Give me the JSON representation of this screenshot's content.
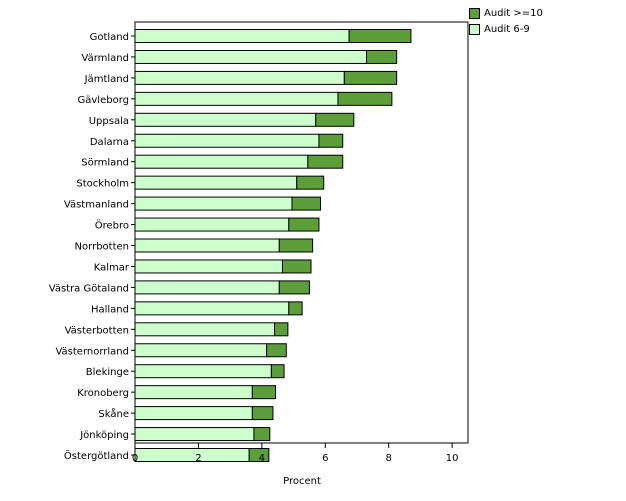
{
  "chart_data": {
    "type": "bar",
    "orientation": "horizontal",
    "stacked": true,
    "categories": [
      "Gotland",
      "Värmland",
      "Jämtland",
      "Gävleborg",
      "Uppsala",
      "Dalarna",
      "Sörmland",
      "Stockholm",
      "Västmanland",
      "Örebro",
      "Norrbotten",
      "Kalmar",
      "Västra Götaland",
      "Halland",
      "Västerbotten",
      "Västernorrland",
      "Blekinge",
      "Kronoberg",
      "Skåne",
      "Jönköping",
      "Östergötland"
    ],
    "series": [
      {
        "name": "Audit 6-9",
        "color": "#ccffcc",
        "values": [
          6.75,
          7.3,
          6.6,
          6.4,
          5.7,
          5.8,
          5.45,
          5.1,
          4.95,
          4.85,
          4.55,
          4.65,
          4.55,
          4.85,
          4.4,
          4.15,
          4.3,
          3.7,
          3.7,
          3.75,
          3.6
        ]
      },
      {
        "name": "Audit >=10",
        "color": "#5b9e3a",
        "values": [
          1.95,
          0.95,
          1.65,
          1.7,
          1.2,
          0.75,
          1.1,
          0.85,
          0.9,
          0.95,
          1.05,
          0.9,
          0.95,
          0.42,
          0.42,
          0.62,
          0.4,
          0.73,
          0.65,
          0.5,
          0.62
        ]
      }
    ],
    "legend_order": [
      "Audit >=10",
      "Audit 6-9"
    ],
    "xlabel": "Procent",
    "ylabel": "",
    "xlim": [
      0,
      10.5
    ],
    "xticks": [
      0,
      2,
      4,
      6,
      8,
      10
    ],
    "grid": false,
    "legend_position": "top-right outside"
  }
}
